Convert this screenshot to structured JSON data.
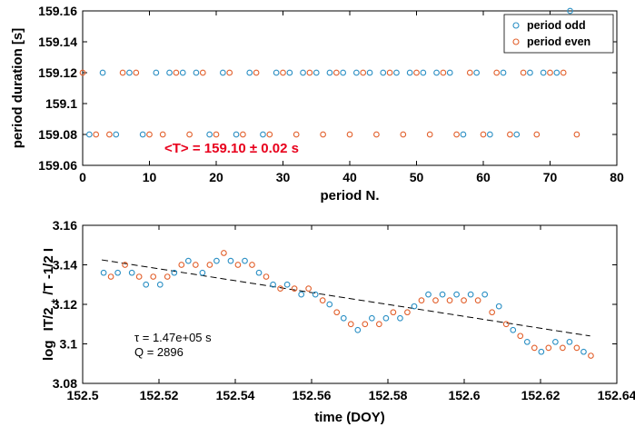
{
  "colors": {
    "odd": "#2a8fc4",
    "even": "#e2602c",
    "annotation": "#e8001c",
    "fit": "#000000"
  },
  "chart_data": [
    {
      "type": "scatter",
      "xlabel": "period N.",
      "ylabel": "period duration  [s]",
      "xlim": [
        0,
        80
      ],
      "ylim": [
        159.06,
        159.16
      ],
      "x_ticks": [
        0,
        10,
        20,
        30,
        40,
        50,
        60,
        70,
        80
      ],
      "y_ticks": [
        159.06,
        159.08,
        159.1,
        159.12,
        159.14,
        159.16
      ],
      "y_tick_labels": [
        "159.06",
        "159.08",
        "159.1",
        "159.12",
        "159.14",
        "159.16"
      ],
      "legend": {
        "position": "top-right",
        "entries": [
          "period odd",
          "period even"
        ]
      },
      "annotation": "<T> = 159.10 ± 0.02 s",
      "series": [
        {
          "name": "period odd",
          "color_key": "odd",
          "x": [
            1,
            3,
            5,
            7,
            9,
            11,
            13,
            15,
            17,
            19,
            21,
            23,
            25,
            27,
            29,
            31,
            33,
            35,
            37,
            39,
            41,
            43,
            45,
            47,
            49,
            51,
            53,
            55,
            57,
            59,
            61,
            63,
            65,
            67,
            69,
            71,
            73
          ],
          "y": [
            159.08,
            159.12,
            159.08,
            159.12,
            159.08,
            159.12,
            159.12,
            159.12,
            159.12,
            159.08,
            159.12,
            159.08,
            159.12,
            159.08,
            159.12,
            159.12,
            159.12,
            159.12,
            159.12,
            159.12,
            159.12,
            159.12,
            159.12,
            159.12,
            159.12,
            159.12,
            159.12,
            159.12,
            159.08,
            159.12,
            159.08,
            159.12,
            159.08,
            159.12,
            159.12,
            159.12,
            159.16
          ]
        },
        {
          "name": "period even",
          "color_key": "even",
          "x": [
            0,
            2,
            4,
            6,
            8,
            10,
            12,
            14,
            16,
            18,
            20,
            22,
            24,
            26,
            28,
            30,
            32,
            34,
            36,
            38,
            40,
            42,
            44,
            46,
            48,
            50,
            52,
            54,
            56,
            58,
            60,
            62,
            64,
            66,
            68,
            70,
            72,
            74
          ],
          "y": [
            159.12,
            159.08,
            159.08,
            159.12,
            159.12,
            159.08,
            159.08,
            159.12,
            159.08,
            159.12,
            159.08,
            159.12,
            159.08,
            159.12,
            159.08,
            159.12,
            159.08,
            159.12,
            159.08,
            159.12,
            159.08,
            159.12,
            159.08,
            159.12,
            159.08,
            159.12,
            159.08,
            159.12,
            159.08,
            159.12,
            159.08,
            159.12,
            159.08,
            159.12,
            159.08,
            159.12,
            159.12,
            159.08
          ]
        }
      ]
    },
    {
      "type": "scatter",
      "xlabel": "time (DOY)",
      "ylabel_parts": {
        "log": "log",
        "main": "IT/2",
        "sub": "±",
        "tail": "/T   -1/2 I"
      },
      "xlim": [
        152.5,
        152.64
      ],
      "ylim": [
        3.08,
        3.16
      ],
      "x_ticks": [
        152.5,
        152.52,
        152.54,
        152.56,
        152.58,
        152.6,
        152.62,
        152.64
      ],
      "x_tick_labels": [
        "152.5",
        "152.52",
        "152.54",
        "152.56",
        "152.58",
        "152.6",
        "152.62",
        "152.64"
      ],
      "y_ticks": [
        3.08,
        3.1,
        3.12,
        3.14,
        3.16
      ],
      "y_tick_labels": [
        "3.08",
        "3.1",
        "3.12",
        "3.14",
        "3.16"
      ],
      "annotation_tau": "τ = 1.47e+05 s",
      "annotation_q": "Q = 2896",
      "fit_line": {
        "x": [
          152.505,
          152.633
        ],
        "y": [
          3.1425,
          3.104
        ]
      },
      "series": [
        {
          "name": "period odd",
          "color_key": "odd",
          "x": [
            152.5055,
            152.5092,
            152.5129,
            152.5166,
            152.5203,
            152.524,
            152.5277,
            152.5314,
            152.5351,
            152.5388,
            152.5425,
            152.5462,
            152.5499,
            152.5536,
            152.5573,
            152.561,
            152.5647,
            152.5684,
            152.5721,
            152.5758,
            152.5795,
            152.5832,
            152.5869,
            152.5906,
            152.5943,
            152.598,
            152.6017,
            152.6054,
            152.6091,
            152.6128,
            152.6165,
            152.6202,
            152.6239,
            152.6276,
            152.6313
          ],
          "y": [
            3.136,
            3.136,
            3.136,
            3.13,
            3.13,
            3.136,
            3.142,
            3.136,
            3.142,
            3.142,
            3.142,
            3.136,
            3.13,
            3.13,
            3.125,
            3.125,
            3.12,
            3.113,
            3.107,
            3.113,
            3.113,
            3.113,
            3.119,
            3.125,
            3.125,
            3.125,
            3.125,
            3.125,
            3.119,
            3.107,
            3.101,
            3.096,
            3.101,
            3.101,
            3.096
          ]
        },
        {
          "name": "period even",
          "color_key": "even",
          "x": [
            152.5074,
            152.5111,
            152.5148,
            152.5185,
            152.5222,
            152.5259,
            152.5296,
            152.5333,
            152.537,
            152.5407,
            152.5444,
            152.5481,
            152.5518,
            152.5555,
            152.5592,
            152.5629,
            152.5666,
            152.5703,
            152.574,
            152.5777,
            152.5814,
            152.5851,
            152.5888,
            152.5925,
            152.5962,
            152.5999,
            152.6036,
            152.6073,
            152.611,
            152.6147,
            152.6184,
            152.6221,
            152.6258,
            152.6295,
            152.6332
          ],
          "y": [
            3.134,
            3.14,
            3.134,
            3.134,
            3.134,
            3.14,
            3.14,
            3.14,
            3.146,
            3.14,
            3.14,
            3.134,
            3.128,
            3.128,
            3.128,
            3.122,
            3.116,
            3.11,
            3.11,
            3.11,
            3.116,
            3.116,
            3.122,
            3.122,
            3.122,
            3.122,
            3.122,
            3.116,
            3.11,
            3.104,
            3.098,
            3.098,
            3.098,
            3.098,
            3.094
          ]
        }
      ]
    }
  ]
}
